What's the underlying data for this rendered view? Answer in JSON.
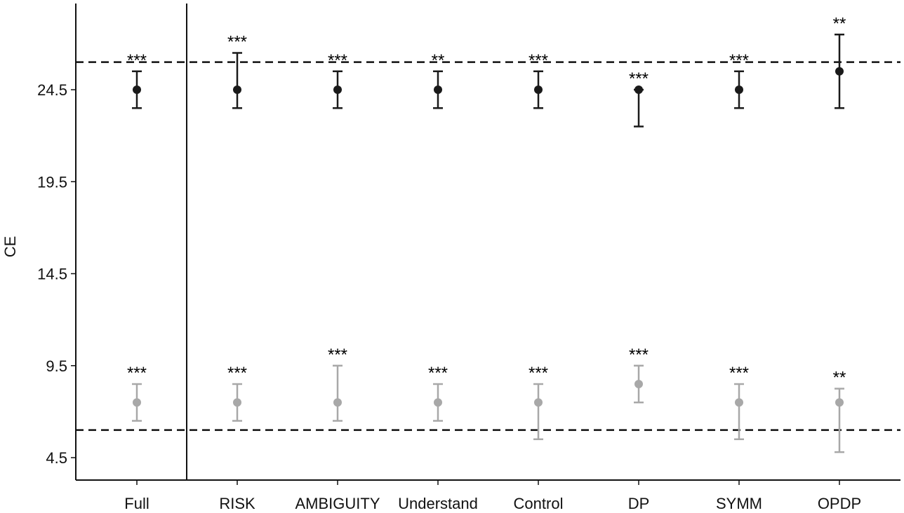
{
  "chart_data": {
    "type": "scatter",
    "title": "",
    "xlabel": "",
    "ylabel": "CE",
    "ylim": [
      2.5,
      28.5
    ],
    "yticks": [
      4.5,
      9.5,
      14.5,
      19.5,
      24.5
    ],
    "ytick_labels": [
      "4.5",
      "9.5",
      "14.5",
      "19.5",
      "24.5"
    ],
    "grid": false,
    "legend": "none",
    "categories": [
      "Full",
      "RISK",
      "AMBIGUITY",
      "Understand",
      "Control",
      "DP",
      "SYMM",
      "OPDP"
    ],
    "reference_lines": [
      26,
      6
    ],
    "panel_divider_after": "Full",
    "series": [
      {
        "color": "#1a1a1a",
        "values": [
          24.5,
          24.5,
          24.5,
          24.5,
          24.5,
          24.5,
          24.5,
          25.5
        ],
        "lower": [
          23.5,
          23.5,
          23.5,
          23.5,
          23.5,
          22.5,
          23.5,
          23.5
        ],
        "upper": [
          25.5,
          26.5,
          25.5,
          25.5,
          25.5,
          24.5,
          25.5,
          27.5
        ],
        "significance": [
          "***",
          "***",
          "***",
          "**",
          "***",
          "***",
          "***",
          "**"
        ]
      },
      {
        "color": "#a8a8a8",
        "values": [
          7.5,
          7.5,
          7.5,
          7.5,
          7.5,
          8.5,
          7.5,
          7.5
        ],
        "lower": [
          6.5,
          6.5,
          6.5,
          6.5,
          5.5,
          7.5,
          5.5,
          4.8
        ],
        "upper": [
          8.5,
          8.5,
          9.5,
          8.5,
          8.5,
          9.5,
          8.5,
          8.25
        ],
        "significance": [
          "***",
          "***",
          "***",
          "***",
          "***",
          "***",
          "***",
          "**"
        ]
      }
    ]
  }
}
